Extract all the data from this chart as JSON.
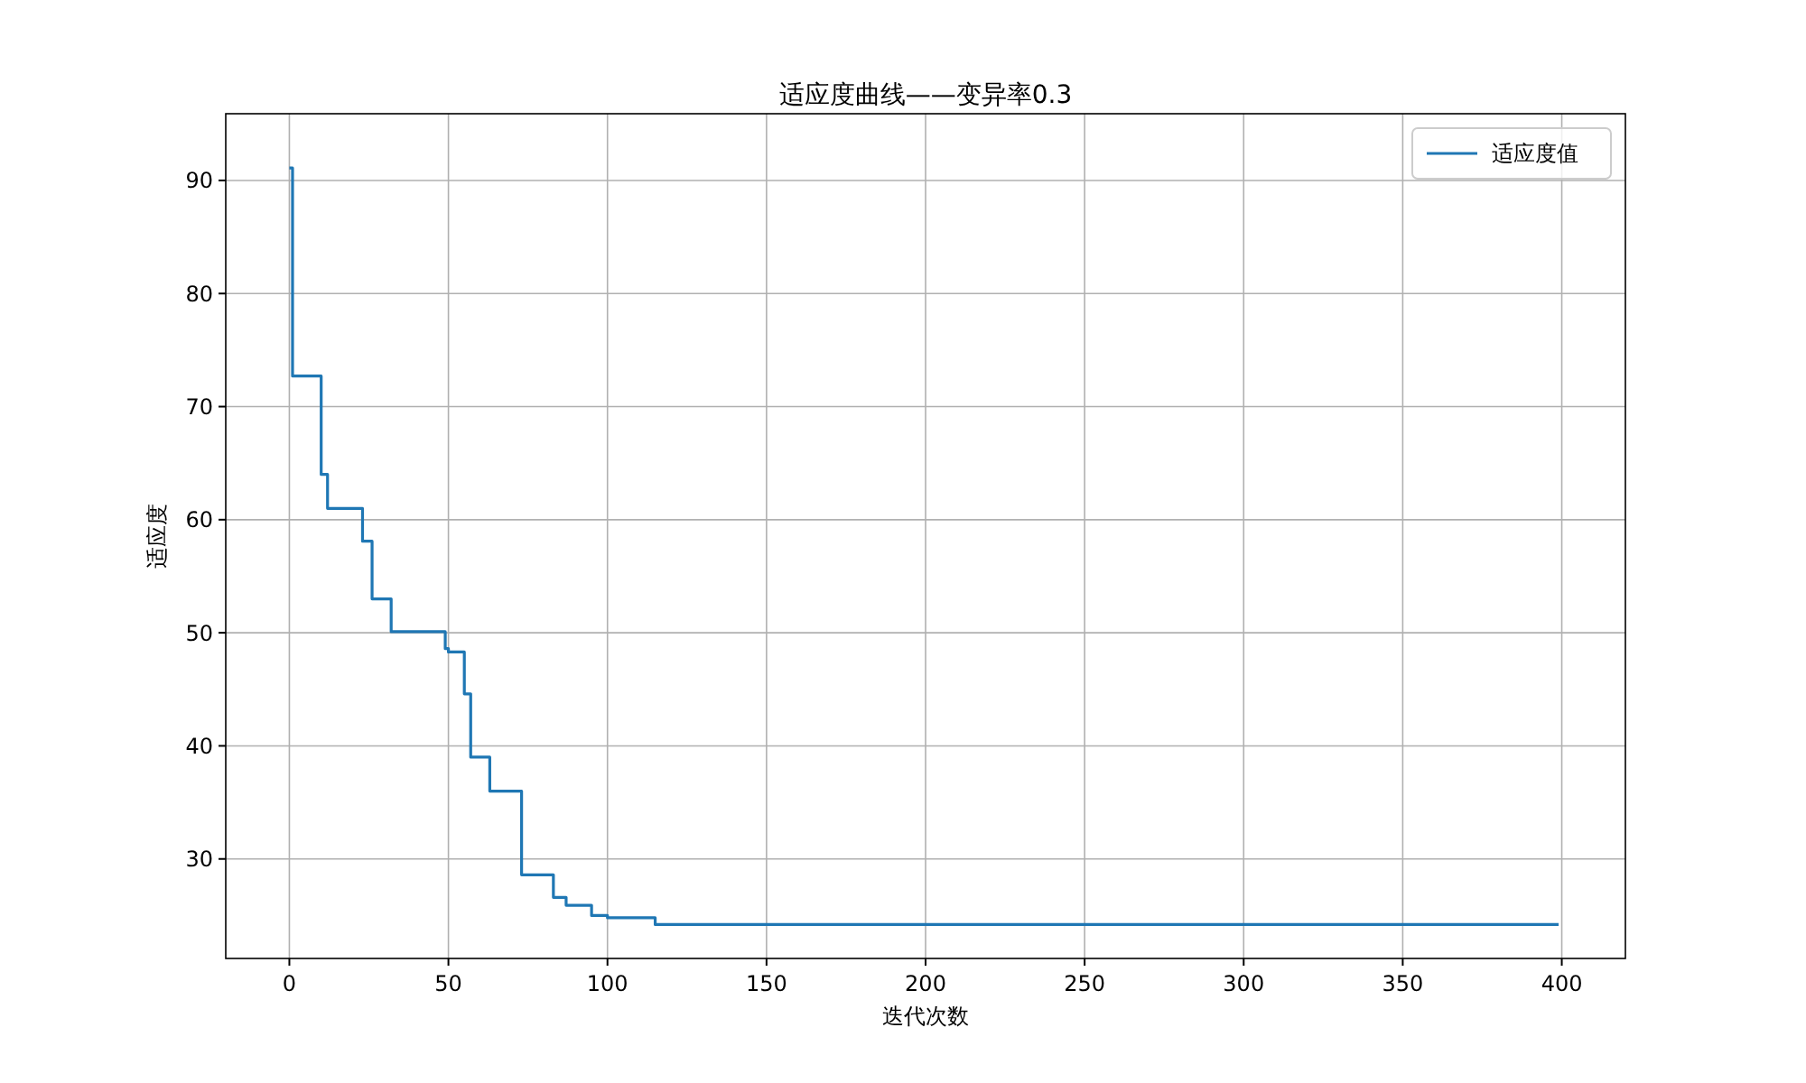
{
  "chart_data": {
    "type": "step",
    "title": "适应度曲线——变异率0.3",
    "xlabel": "迭代次数",
    "ylabel": "适应度",
    "x": [
      0,
      1,
      10,
      12,
      23,
      26,
      32,
      49,
      50,
      55,
      57,
      63,
      73,
      83,
      87,
      95,
      100,
      115,
      399
    ],
    "series": [
      {
        "name": "适应度值",
        "color": "#1f77b4",
        "values": [
          91.1,
          72.7,
          64.0,
          61.0,
          58.1,
          53.0,
          50.1,
          48.6,
          48.3,
          44.6,
          39.0,
          36.0,
          28.6,
          26.6,
          25.9,
          25.0,
          24.8,
          24.2,
          24.2
        ]
      }
    ],
    "xlim": [
      -20,
      420
    ],
    "ylim": [
      21.2,
      95.9
    ],
    "xticks": [
      0,
      50,
      100,
      150,
      200,
      250,
      300,
      350,
      400
    ],
    "yticks": [
      30,
      40,
      50,
      60,
      70,
      80,
      90
    ],
    "grid": true,
    "legend": "top right"
  }
}
